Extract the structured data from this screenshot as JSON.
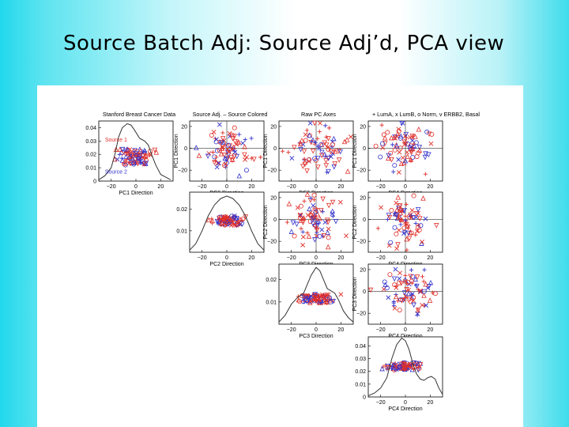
{
  "slide": {
    "title": "Source Batch Adj:  Source Adj’d, PCA view"
  },
  "colors": {
    "red": "#e0302a",
    "blue": "#3333cc",
    "axis": "#000000",
    "density": "#333333"
  },
  "legend_text": "+ LumA, x LumB, o Norm, v ERBB2, Basal",
  "chart_data": {
    "type": "scatter-matrix",
    "title": "Stanford Breast Cancer Data",
    "subtitles": [
      "Source Adj. – Source Colored",
      "Raw PC Axes"
    ],
    "legend": {
      "placement": "top-right",
      "entries": [
        "+ LumA",
        "x LumB",
        "o Norm",
        "v ERBB2",
        "Basal"
      ],
      "sources": [
        "Source 1",
        "Source 2"
      ]
    },
    "variables": [
      "PC1",
      "PC2",
      "PC3",
      "PC4"
    ],
    "axis_labels": [
      "PC1 Direction",
      "PC2 Direction",
      "PC3 Direction",
      "PC4 Direction"
    ],
    "panels": [
      {
        "type": "density",
        "row": 1,
        "col": 1,
        "xlabel": "PC1 Direction",
        "xlim": [
          -30,
          30
        ],
        "xticks": [
          -20,
          0,
          20
        ],
        "ylim": [
          0,
          0.045
        ],
        "yticks": [
          0,
          0.01,
          0.02,
          0.03,
          0.04
        ],
        "ytick_labels": [
          "0",
          "0.01",
          "0.02",
          "0.03",
          "0.04"
        ],
        "jitter_y": [
          0.012,
          0.024
        ],
        "curve": [
          [
            -30,
            0.001
          ],
          [
            -25,
            0.004
          ],
          [
            -20,
            0.01
          ],
          [
            -17,
            0.02
          ],
          [
            -14,
            0.033
          ],
          [
            -11,
            0.04
          ],
          [
            -7,
            0.043
          ],
          [
            -4,
            0.042
          ],
          [
            -1,
            0.038
          ],
          [
            3,
            0.032
          ],
          [
            7,
            0.03
          ],
          [
            10,
            0.027
          ],
          [
            13,
            0.019
          ],
          [
            16,
            0.012
          ],
          [
            20,
            0.005
          ],
          [
            24,
            0.003
          ],
          [
            28,
            0.001
          ]
        ],
        "source_labels": [
          {
            "text": "Source 1",
            "x": -25,
            "y": 0.0295
          },
          {
            "text": "Source 2",
            "x": -25,
            "y": 0.0055
          }
        ]
      },
      {
        "type": "scatter",
        "row": 1,
        "col": 2,
        "xvar": "PC2",
        "yvar": "PC1",
        "xlabel": "PC2 Direction",
        "ylabel": "PC1 Direction",
        "xlim": [
          -30,
          30
        ],
        "ylim": [
          -30,
          25
        ],
        "xticks": [
          -20,
          0,
          20
        ],
        "yticks": [
          -20,
          0,
          20
        ],
        "seed": 11,
        "n": 80
      },
      {
        "type": "scatter",
        "row": 1,
        "col": 3,
        "xvar": "PC3",
        "yvar": "PC1",
        "xlabel": "PC3 Direction",
        "ylabel": "PC1 Direction",
        "xlim": [
          -30,
          30
        ],
        "ylim": [
          -30,
          25
        ],
        "xticks": [
          -20,
          0,
          20
        ],
        "yticks": [
          -20,
          0,
          20
        ],
        "seed": 23,
        "n": 80
      },
      {
        "type": "scatter",
        "row": 1,
        "col": 4,
        "xvar": "PC4",
        "yvar": "PC1",
        "xlabel": "PC4 Direction",
        "ylabel": "PC1 Direction",
        "xlim": [
          -30,
          30
        ],
        "ylim": [
          -30,
          25
        ],
        "xticks": [
          -20,
          0,
          20
        ],
        "yticks": [
          -20,
          0,
          20
        ],
        "seed": 37,
        "n": 80
      },
      {
        "type": "density",
        "row": 2,
        "col": 2,
        "xlabel": "PC2 Direction",
        "xlim": [
          -30,
          30
        ],
        "xticks": [
          -20,
          0,
          20
        ],
        "ylim": [
          0,
          0.028
        ],
        "yticks": [
          0.01,
          0.02
        ],
        "ytick_labels": [
          "0.01",
          "0.02"
        ],
        "jitter_y": [
          0.0125,
          0.017
        ],
        "curve": [
          [
            -30,
            0.001
          ],
          [
            -25,
            0.004
          ],
          [
            -20,
            0.01
          ],
          [
            -15,
            0.017
          ],
          [
            -10,
            0.022
          ],
          [
            -5,
            0.025
          ],
          [
            0,
            0.0262
          ],
          [
            5,
            0.025
          ],
          [
            10,
            0.022
          ],
          [
            15,
            0.017
          ],
          [
            20,
            0.01
          ],
          [
            25,
            0.004
          ],
          [
            30,
            0.001
          ]
        ]
      },
      {
        "type": "scatter",
        "row": 2,
        "col": 3,
        "xvar": "PC3",
        "yvar": "PC2",
        "xlabel": "PC3 Direction",
        "ylabel": "PC2 Direction",
        "xlim": [
          -30,
          30
        ],
        "ylim": [
          -30,
          25
        ],
        "xticks": [
          -20,
          0,
          20
        ],
        "yticks": [
          -20,
          0,
          20
        ],
        "seed": 41,
        "n": 80
      },
      {
        "type": "scatter",
        "row": 2,
        "col": 4,
        "xvar": "PC4",
        "yvar": "PC2",
        "xlabel": "PC4 Direction",
        "ylabel": "PC2 Direction",
        "xlim": [
          -30,
          30
        ],
        "ylim": [
          -30,
          25
        ],
        "xticks": [
          -20,
          0,
          20
        ],
        "yticks": [
          -20,
          0,
          20
        ],
        "seed": 53,
        "n": 80
      },
      {
        "type": "density",
        "row": 3,
        "col": 3,
        "xlabel": "PC3 Direction",
        "xlim": [
          -30,
          30
        ],
        "xticks": [
          -20,
          0,
          20
        ],
        "ylim": [
          0,
          0.027
        ],
        "yticks": [
          0.01,
          0.02
        ],
        "ytick_labels": [
          "0.01",
          "0.02"
        ],
        "jitter_y": [
          0.0095,
          0.0135
        ],
        "curve": [
          [
            -30,
            0.001
          ],
          [
            -25,
            0.004
          ],
          [
            -20,
            0.009
          ],
          [
            -15,
            0.012
          ],
          [
            -10,
            0.014
          ],
          [
            -7,
            0.018
          ],
          [
            -4,
            0.022
          ],
          [
            0,
            0.0255
          ],
          [
            3,
            0.024
          ],
          [
            6,
            0.02
          ],
          [
            9,
            0.016
          ],
          [
            12,
            0.015
          ],
          [
            15,
            0.014
          ],
          [
            18,
            0.011
          ],
          [
            22,
            0.006
          ],
          [
            26,
            0.003
          ],
          [
            30,
            0.001
          ]
        ]
      },
      {
        "type": "scatter",
        "row": 3,
        "col": 4,
        "xvar": "PC4",
        "yvar": "PC3",
        "xlabel": "PC4 Direction",
        "ylabel": "PC3 Direction",
        "xlim": [
          -30,
          30
        ],
        "ylim": [
          -30,
          25
        ],
        "xticks": [
          -20,
          0,
          20
        ],
        "yticks": [
          -20,
          0,
          20
        ],
        "seed": 67,
        "n": 80
      },
      {
        "type": "density",
        "row": 4,
        "col": 4,
        "xlabel": "PC4 Direction",
        "xlim": [
          -30,
          30
        ],
        "xticks": [
          -20,
          0,
          20
        ],
        "ylim": [
          0,
          0.047
        ],
        "yticks": [
          0,
          0.01,
          0.02,
          0.03,
          0.04
        ],
        "ytick_labels": [
          "0",
          "0.01",
          "0.02",
          "0.03",
          "0.04"
        ],
        "jitter_y": [
          0.021,
          0.027
        ],
        "curve": [
          [
            -30,
            0.001
          ],
          [
            -25,
            0.003
          ],
          [
            -20,
            0.007
          ],
          [
            -15,
            0.015
          ],
          [
            -11,
            0.03
          ],
          [
            -7,
            0.041
          ],
          [
            -3,
            0.046
          ],
          [
            0,
            0.044
          ],
          [
            3,
            0.037
          ],
          [
            6,
            0.026
          ],
          [
            9,
            0.018
          ],
          [
            12,
            0.014
          ],
          [
            15,
            0.013
          ],
          [
            18,
            0.015
          ],
          [
            21,
            0.016
          ],
          [
            24,
            0.014
          ],
          [
            27,
            0.007
          ],
          [
            30,
            0.002
          ]
        ]
      }
    ]
  }
}
